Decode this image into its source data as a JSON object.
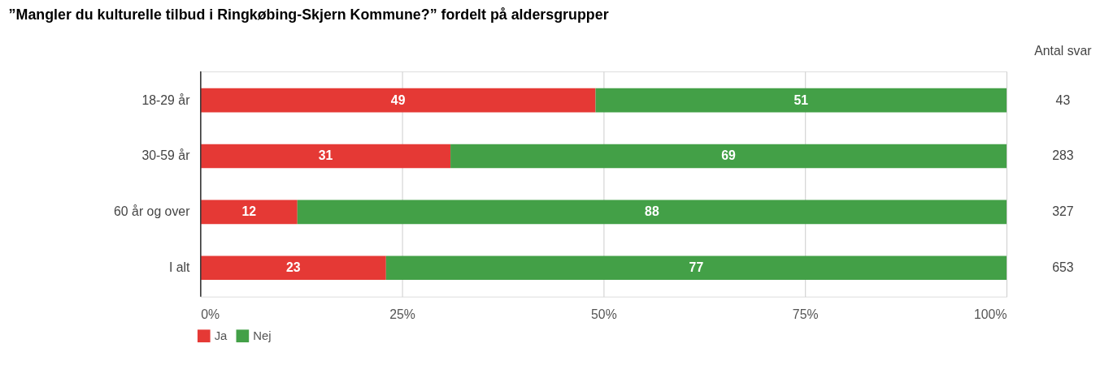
{
  "chart_data": {
    "type": "bar",
    "orientation": "horizontal",
    "stacked": true,
    "title": "”Mangler du kulturelle tilbud i Ringkøbing-Skjern Kommune?” fordelt på aldersgrupper",
    "categories": [
      "18-29 år",
      "30-59 år",
      "60 år og over",
      "I alt"
    ],
    "series": [
      {
        "name": "Ja",
        "color": "#e53935",
        "values": [
          49,
          31,
          12,
          23
        ]
      },
      {
        "name": "Nej",
        "color": "#43a047",
        "values": [
          51,
          69,
          88,
          77
        ]
      }
    ],
    "xlim": [
      0,
      100
    ],
    "xticks": [
      {
        "value": 0,
        "label": "0%"
      },
      {
        "value": 25,
        "label": "25%"
      },
      {
        "value": 50,
        "label": "50%"
      },
      {
        "value": 75,
        "label": "75%"
      },
      {
        "value": 100,
        "label": "100%"
      }
    ],
    "grid": "x",
    "legend": "bottom left",
    "data_labels": true,
    "annotations": [
      "Antal svar",
      "43",
      "283",
      "327",
      "653"
    ]
  }
}
